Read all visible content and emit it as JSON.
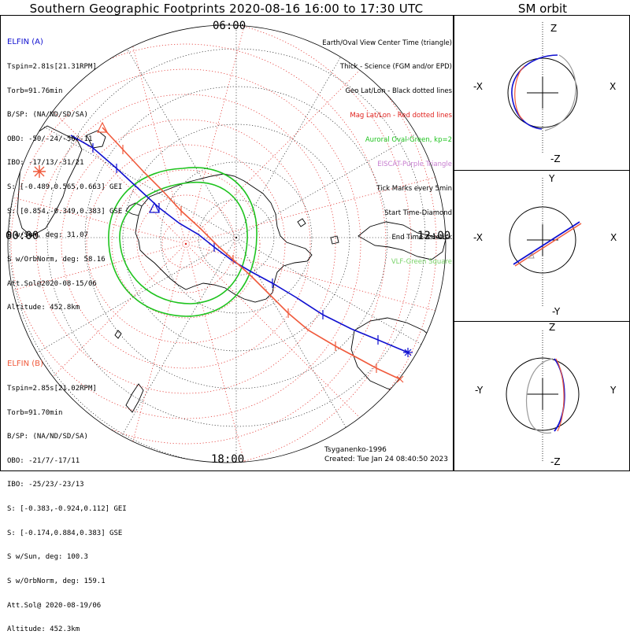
{
  "title": "Southern Geographic Footprints 2020-08-16 16:00 to 17:30 UTC",
  "orbit_title": "SM orbit",
  "mlt_labels": {
    "top": "06:00",
    "left": "00:00",
    "right": "12:00",
    "bottom": "18:00"
  },
  "legend": [
    {
      "text": "Earth/Oval View Center Time (triangle)",
      "color": "#000000"
    },
    {
      "text": "Thick - Science (FGM and/or EPD)",
      "color": "#000000"
    },
    {
      "text": "Geo Lat/Lon - Black dotted lines",
      "color": "#000000"
    },
    {
      "text": "Mag Lat/Lon - Red dotted lines",
      "color": "#e0201c"
    },
    {
      "text": "Auroral Oval-Green, kp=2",
      "color": "#1ec31e"
    },
    {
      "text": "EISCAT-Purple Triangle",
      "color": "#c77dd0"
    },
    {
      "text": "Tick Marks every 5min",
      "color": "#000000"
    },
    {
      "text": "Start Time-Diamond",
      "color": "#000000"
    },
    {
      "text": "End Time-Asterisk",
      "color": "#000000"
    },
    {
      "text": "VLF-Green Square",
      "color": "#7ad36a"
    }
  ],
  "elfin_a": {
    "header": "ELFIN (A)",
    "color": "#1010d0",
    "lines": [
      "Tspin=2.81s[21.31RPM]",
      "Torb=91.76min",
      "B/SP: (NA/ND/SD/SA)",
      "OBO: -50/-24/-56/-11",
      "IBO: -17/13/-31/21",
      "S: [-0.489,0.565,0.663] GEI",
      "S: [0.854,-0.349,0.383] GSE",
      "S w/Sun, deg: 31.07",
      "S w/OrbNorm, deg: 58.16",
      "Att.Sol@2020-08-15/06",
      "Altitude: 452.8km"
    ]
  },
  "elfin_b": {
    "header": "ELFIN (B)",
    "color": "#f05a3c",
    "lines": [
      "Tspin=2.85s[21.02RPM]",
      "Torb=91.70min",
      "B/SP: (NA/ND/SD/SA)",
      "OBO: -21/7/-17/11",
      "IBO: -25/23/-23/13",
      "S: [-0.383,-0.924,0.112] GEI",
      "S: [-0.174,0.884,0.383] GSE",
      "S w/Sun, deg: 100.3",
      "S w/OrbNorm, deg: 159.1",
      "Att.Sol@ 2020-08-19/06",
      "Altitude: 452.3km"
    ]
  },
  "footer": {
    "credit": "Tsyganenko-1996",
    "created": "Created: Tue Jan 24 08:40:50 2023"
  },
  "orbit_panels": [
    {
      "top": "Z",
      "bottom": "-Z",
      "left": "-X",
      "right": "X"
    },
    {
      "top": "Y",
      "bottom": "-Y",
      "left": "-X",
      "right": "X"
    },
    {
      "top": "Z",
      "bottom": "-Z",
      "left": "-Y",
      "right": "Y"
    }
  ],
  "colors": {
    "elfin_a": "#1010d0",
    "elfin_b": "#f05a3c",
    "oval": "#1ec31e",
    "mag_grid": "#e0201c",
    "geo_grid": "#000000"
  }
}
